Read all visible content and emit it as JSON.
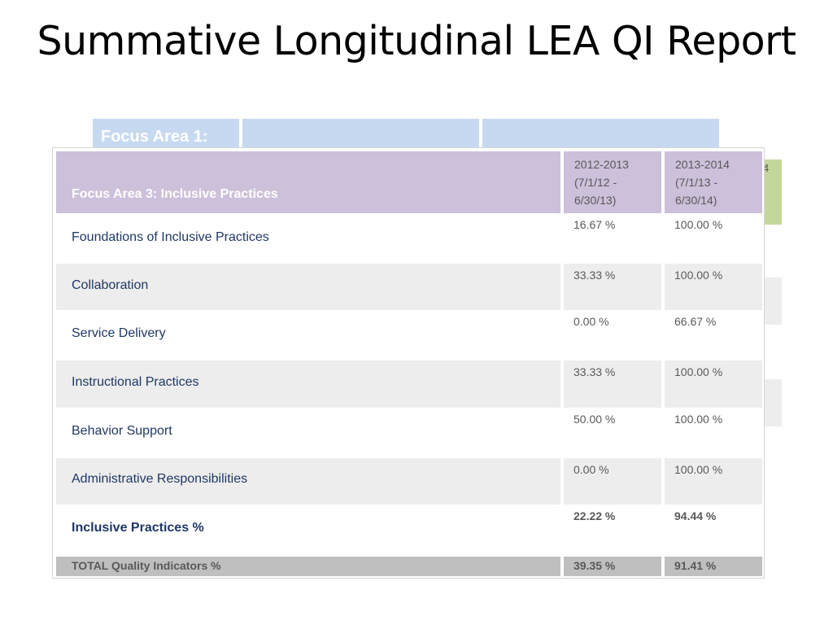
{
  "slide": {
    "title": "Summative Longitudinal LEA QI Report"
  },
  "background_table": {
    "focus_area_label": "Focus Area 1:",
    "partial_year_digit": "4"
  },
  "table": {
    "header": {
      "title": "Focus Area 3: Inclusive Practices",
      "year1": "2012-2013\n(7/1/12 -\n6/30/13)",
      "year2": "2013-2014\n(7/1/13 -\n6/30/14)"
    },
    "rows": [
      {
        "label": "Foundations of Inclusive Practices",
        "y1": "16.67 %",
        "y2": "100.00 %"
      },
      {
        "label": "Collaboration",
        "y1": "33.33 %",
        "y2": "100.00 %"
      },
      {
        "label": "Service Delivery",
        "y1": "0.00 %",
        "y2": "66.67 %"
      },
      {
        "label": "Instructional Practices",
        "y1": "33.33 %",
        "y2": "100.00 %"
      },
      {
        "label": "Behavior Support",
        "y1": "50.00 %",
        "y2": "100.00 %"
      },
      {
        "label": "Administrative Responsibilities",
        "y1": "0.00 %",
        "y2": "100.00 %"
      },
      {
        "label": "Inclusive Practices %",
        "y1": "22.22 %",
        "y2": "94.44 %"
      }
    ],
    "total": {
      "label": "TOTAL Quality Indicators %",
      "y1": "39.35 %",
      "y2": "91.41 %"
    }
  }
}
